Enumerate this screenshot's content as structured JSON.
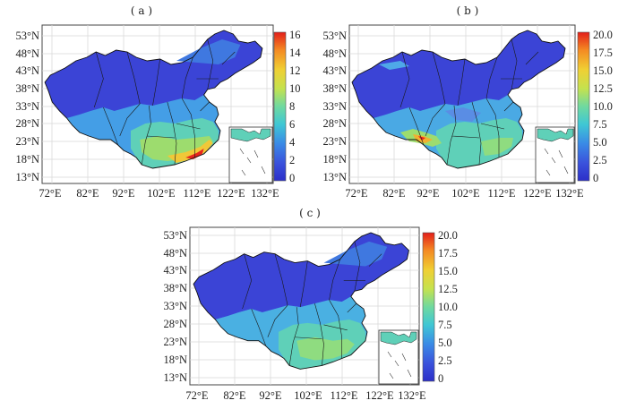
{
  "panels": [
    {
      "label": "( a )",
      "lat_labels": [
        "53°N",
        "48°N",
        "43°N",
        "38°N",
        "33°N",
        "28°N",
        "23°N",
        "18°N",
        "13°N"
      ],
      "lon_labels": [
        "72°E",
        "82°E",
        "92°E",
        "102°E",
        "112°E",
        "122°E",
        "132°E"
      ],
      "colorbar_ticks": [
        "16",
        "14",
        "12",
        "10",
        "8",
        "6",
        "4",
        "2",
        "0"
      ],
      "colorbar_range": [
        0,
        16
      ]
    },
    {
      "label": "( b )",
      "lat_labels": [
        "53°N",
        "48°N",
        "43°N",
        "38°N",
        "33°N",
        "28°N",
        "23°N",
        "18°N",
        "13°N"
      ],
      "lon_labels": [
        "72°E",
        "82°E",
        "92°E",
        "102°E",
        "112°E",
        "122°E",
        "132°E"
      ],
      "colorbar_ticks": [
        "20.0",
        "17.5",
        "15.0",
        "12.5",
        "10.0",
        "7.5",
        "5.0",
        "2.5",
        "0"
      ],
      "colorbar_range": [
        0,
        20
      ]
    },
    {
      "label": "( c )",
      "lat_labels": [
        "53°N",
        "48°N",
        "43°N",
        "38°N",
        "33°N",
        "28°N",
        "23°N",
        "18°N",
        "13°N"
      ],
      "lon_labels": [
        "72°E",
        "82°E",
        "92°E",
        "102°E",
        "112°E",
        "122°E",
        "132°E"
      ],
      "colorbar_ticks": [
        "20.0",
        "17.5",
        "15.0",
        "12.5",
        "10.0",
        "7.5",
        "5.0",
        "2.5",
        "0"
      ],
      "colorbar_range": [
        0,
        20
      ]
    }
  ],
  "colors": {
    "low": "#3b44d6",
    "mid_low": "#3f78e0",
    "mid": "#3fc9d0",
    "mid_high": "#b9e05a",
    "high": "#f5b52a",
    "max": "#e8251e"
  }
}
